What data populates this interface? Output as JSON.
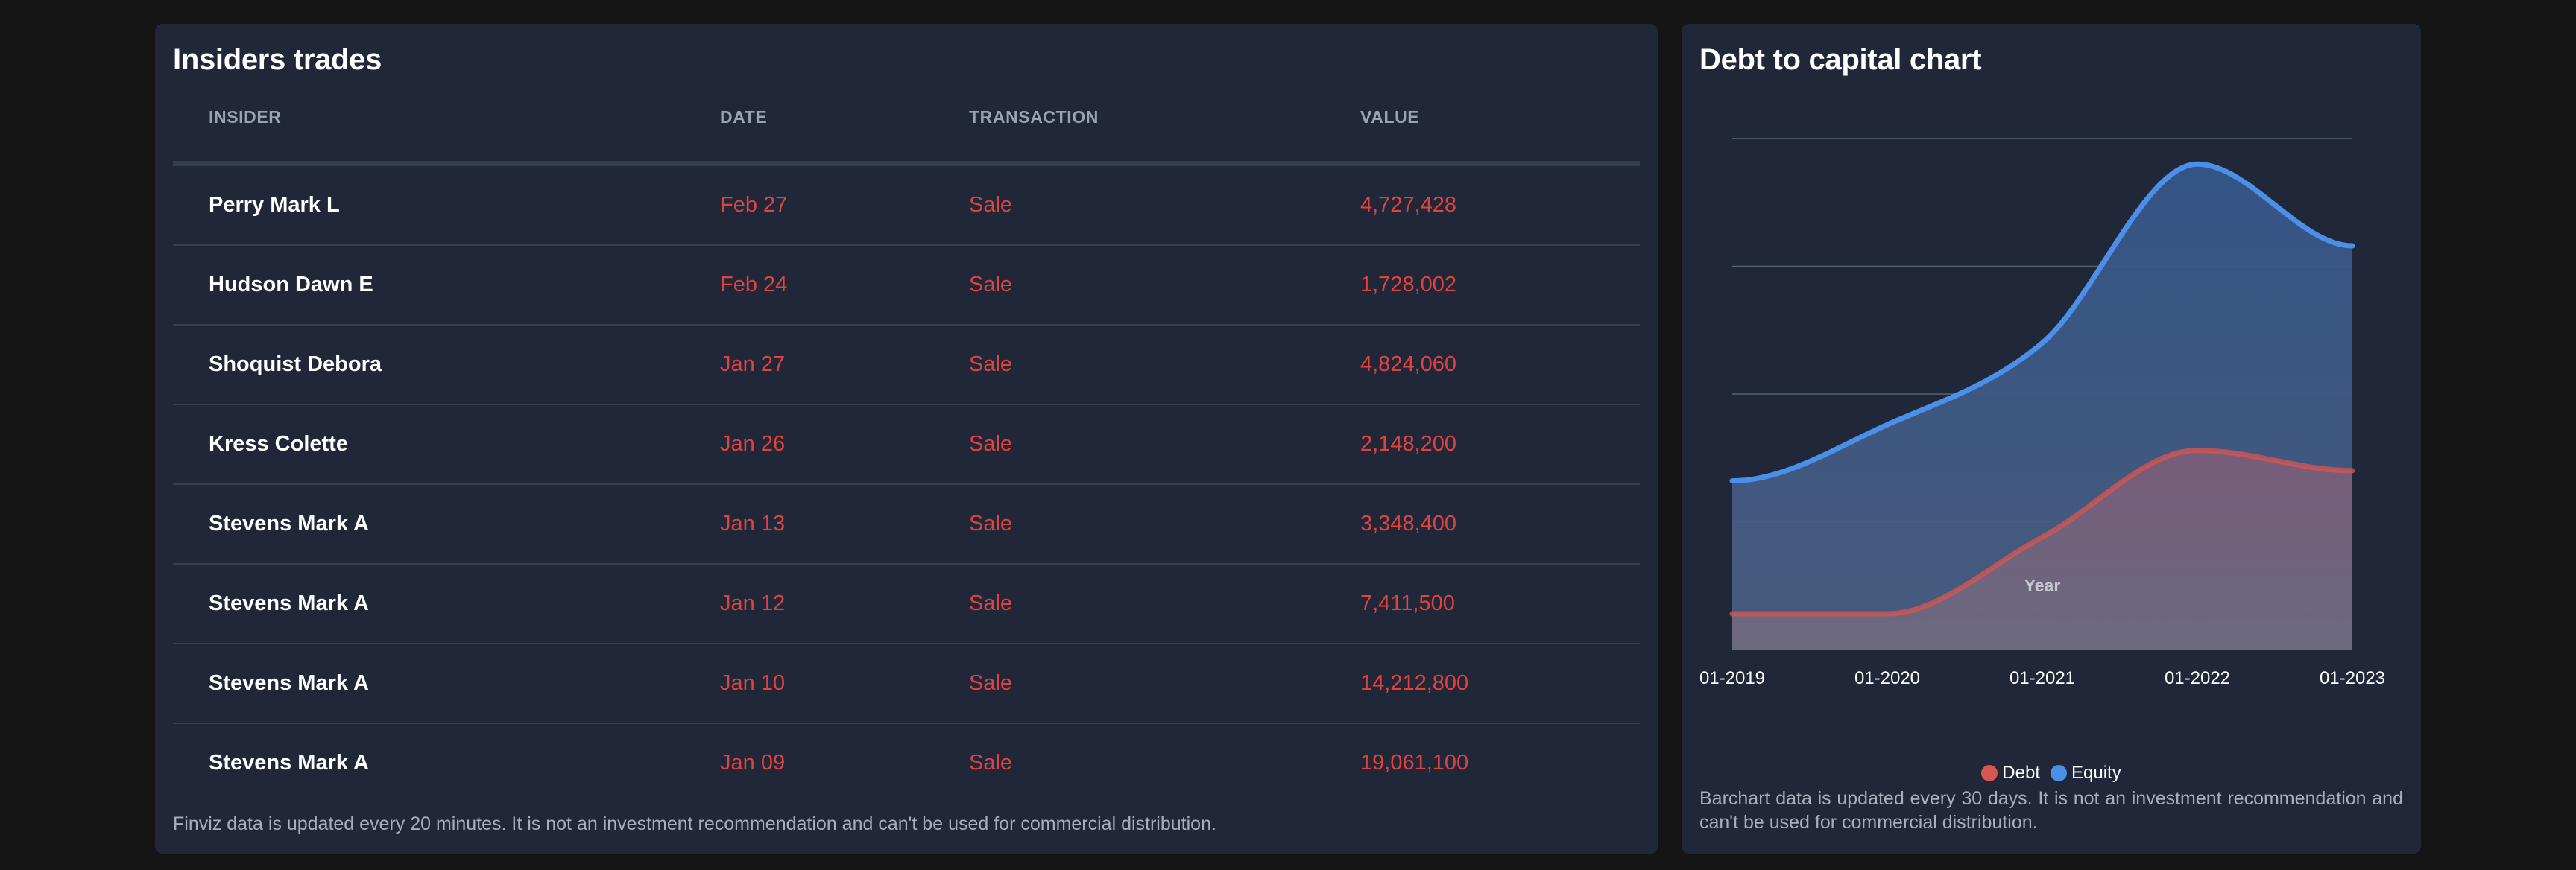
{
  "insiders": {
    "title": "Insiders trades",
    "columns": [
      "INSIDER",
      "DATE",
      "TRANSACTION",
      "VALUE"
    ],
    "rows": [
      {
        "insider": "Perry Mark L",
        "date": "Feb 27",
        "transaction": "Sale",
        "value": "4,727,428"
      },
      {
        "insider": "Hudson Dawn E",
        "date": "Feb 24",
        "transaction": "Sale",
        "value": "1,728,002"
      },
      {
        "insider": "Shoquist Debora",
        "date": "Jan 27",
        "transaction": "Sale",
        "value": "4,824,060"
      },
      {
        "insider": "Kress Colette",
        "date": "Jan 26",
        "transaction": "Sale",
        "value": "2,148,200"
      },
      {
        "insider": "Stevens Mark A",
        "date": "Jan 13",
        "transaction": "Sale",
        "value": "3,348,400"
      },
      {
        "insider": "Stevens Mark A",
        "date": "Jan 12",
        "transaction": "Sale",
        "value": "7,411,500"
      },
      {
        "insider": "Stevens Mark A",
        "date": "Jan 10",
        "transaction": "Sale",
        "value": "14,212,800"
      },
      {
        "insider": "Stevens Mark A",
        "date": "Jan 09",
        "transaction": "Sale",
        "value": "19,061,100"
      }
    ],
    "footnote": "Finviz data is updated every 20 minutes. It is not an investment recommendation and can't be used for commercial distribution."
  },
  "debt_chart": {
    "title": "Debt to capital chart",
    "footnote": "Barchart data is updated every 30 days. It is not an investment recommendation and can't be used for commercial distribution."
  },
  "colors": {
    "negative": "#e0423e",
    "debt": "#d9564f",
    "equity": "#4a90e8",
    "panel": "#1f2739"
  },
  "chart_data": {
    "type": "area",
    "title": "Debt to capital chart",
    "xlabel": "Year",
    "ylabel": "",
    "x": [
      "01-2019",
      "01-2020",
      "01-2021",
      "01-2022",
      "01-2023"
    ],
    "ylim": [
      0,
      100
    ],
    "grid": true,
    "legend_position": "bottom",
    "series": [
      {
        "name": "Debt",
        "values": [
          7,
          7,
          22,
          39,
          35
        ],
        "color": "#d9564f"
      },
      {
        "name": "Equity",
        "values": [
          33,
          44,
          60,
          95,
          79
        ],
        "color": "#4a90e8"
      }
    ]
  }
}
